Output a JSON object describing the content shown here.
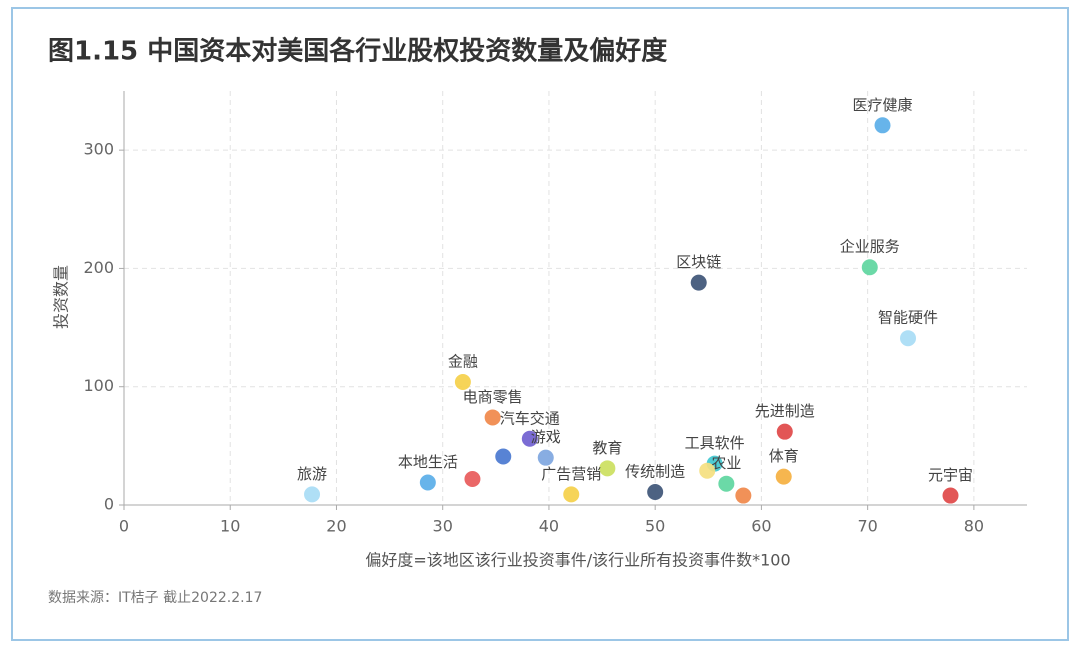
{
  "chart_data": {
    "type": "scatter",
    "title": "图1.15 中国资本对美国各行业股权投资数量及偏好度",
    "x_label": "偏好度=该地区该行业投资事件/该行业所有投资事件数*100",
    "y_label": "投资数量",
    "source": "数据来源：IT桔子 截止2022.2.17",
    "xlim": [
      0,
      85
    ],
    "ylim": [
      0,
      350
    ],
    "xticks": [
      0,
      10,
      20,
      30,
      40,
      50,
      60,
      70,
      80
    ],
    "yticks": [
      0,
      100,
      200,
      300
    ],
    "grid": true,
    "labels": [
      "医疗健康",
      "企业服务",
      "智能硬件",
      "区块链",
      "金融",
      "电商零售",
      "汽车交通",
      "游戏",
      null,
      "本地生活",
      null,
      "旅游",
      "广告营销",
      "教育",
      "传统制造",
      "工具软件",
      null,
      "农业",
      null,
      "先进制造",
      "体育",
      "元宇宙"
    ],
    "x": [
      71.4,
      70.2,
      73.8,
      54.1,
      31.9,
      34.7,
      38.2,
      39.7,
      35.7,
      28.6,
      32.8,
      17.7,
      42.1,
      45.5,
      50.0,
      55.6,
      54.9,
      56.7,
      58.3,
      62.2,
      62.1,
      77.8
    ],
    "y": [
      321,
      201,
      141,
      188,
      104,
      74,
      56,
      40,
      41,
      19,
      22,
      9,
      9,
      31,
      11,
      35,
      29,
      18,
      8,
      62,
      24,
      8
    ],
    "colors": [
      "#5aaee8",
      "#5ed6a0",
      "#a8dcf5",
      "#3e5577",
      "#f5d04a",
      "#f0884a",
      "#7060d0",
      "#7ea6e0",
      "#4a78d0",
      "#5aaee8",
      "#e85a5a",
      "#a8dcf5",
      "#f5d04a",
      "#cce060",
      "#3e5577",
      "#40c8d0",
      "#f5e080",
      "#5ed6a0",
      "#f0884a",
      "#e04848",
      "#f5b040",
      "#e04848"
    ]
  }
}
